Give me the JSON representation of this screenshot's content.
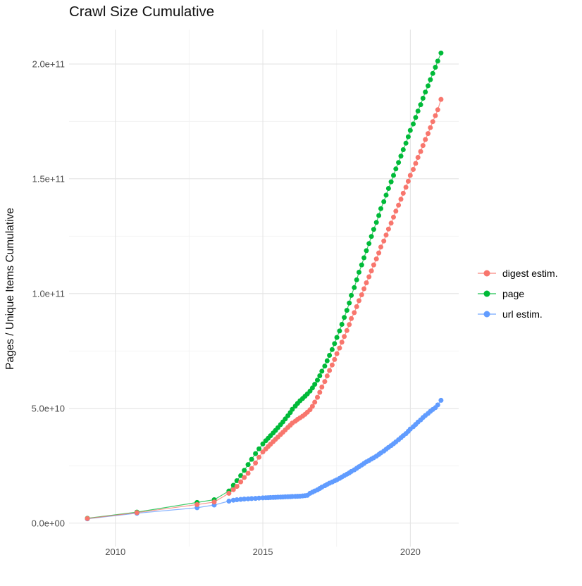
{
  "title": "Crawl Size Cumulative",
  "y_axis_title": "Pages / Unique Items Cumulative",
  "legend": {
    "items": [
      {
        "label": "digest estim.",
        "color": "#F8766D"
      },
      {
        "label": "page",
        "color": "#00BA38"
      },
      {
        "label": "url estim.",
        "color": "#619CFF"
      }
    ]
  },
  "colors": {
    "background": "#ffffff",
    "grid_major": "#e4e4e4",
    "grid_minor": "#f2f2f2",
    "axis_text": "#4d4d4d",
    "title_text": "#111111"
  },
  "chart_data": {
    "type": "scatter",
    "title": "Crawl Size Cumulative",
    "xlabel": "",
    "ylabel": "Pages / Unique Items Cumulative",
    "legend_position": "right",
    "grid": true,
    "xlim": [
      2008.43,
      2021.64
    ],
    "ylim_e9": [
      -10.2,
      215
    ],
    "y_unit_note": "values stored in billions (1e9)",
    "x_ticks": [
      {
        "value": 2010,
        "label": "2010"
      },
      {
        "value": 2015,
        "label": "2015"
      },
      {
        "value": 2020,
        "label": "2020"
      }
    ],
    "x_minor_ticks": [
      2012.5,
      2017.5
    ],
    "y_ticks": [
      {
        "value_e9": 0,
        "label": "0.0e+00"
      },
      {
        "value_e9": 50,
        "label": "5.0e+10"
      },
      {
        "value_e9": 100,
        "label": "1.0e+11"
      },
      {
        "value_e9": 150,
        "label": "1.5e+11"
      },
      {
        "value_e9": 200,
        "label": "2.0e+11"
      }
    ],
    "y_minor_ticks": [
      25,
      75,
      125,
      175
    ],
    "x": [
      2009.05,
      2010.73,
      2012.77,
      2013.35,
      2013.85,
      2014.0,
      2014.12,
      2014.25,
      2014.37,
      2014.5,
      2014.62,
      2014.75,
      2014.87,
      2015.0,
      2015.1,
      2015.18,
      2015.26,
      2015.35,
      2015.43,
      2015.51,
      2015.6,
      2015.68,
      2015.76,
      2015.85,
      2015.93,
      2016.0,
      2016.1,
      2016.18,
      2016.26,
      2016.35,
      2016.43,
      2016.51,
      2016.6,
      2016.68,
      2016.76,
      2016.85,
      2016.93,
      2017.0,
      2017.1,
      2017.18,
      2017.26,
      2017.35,
      2017.43,
      2017.51,
      2017.6,
      2017.68,
      2017.76,
      2017.85,
      2017.93,
      2018.0,
      2018.1,
      2018.18,
      2018.26,
      2018.35,
      2018.43,
      2018.51,
      2018.6,
      2018.68,
      2018.76,
      2018.85,
      2018.93,
      2019.0,
      2019.1,
      2019.18,
      2019.26,
      2019.35,
      2019.43,
      2019.51,
      2019.6,
      2019.68,
      2019.76,
      2019.85,
      2019.93,
      2020.0,
      2020.1,
      2020.18,
      2020.26,
      2020.35,
      2020.43,
      2020.51,
      2020.6,
      2020.68,
      2020.76,
      2020.85,
      2020.93,
      2021.04
    ],
    "series": [
      {
        "name": "digest estim.",
        "color": "#F8766D",
        "values_e9": [
          2.0,
          4.6,
          8.1,
          9.2,
          13.0,
          14.6,
          16.0,
          18.0,
          19.9,
          21.7,
          23.8,
          26.2,
          28.7,
          31.0,
          32.3,
          33.4,
          34.4,
          35.5,
          36.5,
          37.5,
          38.6,
          39.6,
          40.6,
          41.7,
          42.7,
          43.6,
          44.4,
          45.2,
          45.9,
          46.6,
          47.4,
          48.3,
          49.4,
          50.9,
          52.7,
          54.8,
          57.0,
          59.3,
          61.7,
          64.1,
          66.5,
          68.9,
          71.3,
          73.8,
          76.3,
          78.8,
          81.3,
          83.9,
          86.5,
          89.1,
          91.7,
          94.3,
          96.9,
          99.5,
          102.1,
          104.7,
          107.3,
          109.9,
          112.5,
          115.1,
          117.7,
          120.3,
          122.9,
          125.5,
          128.1,
          130.7,
          133.3,
          135.9,
          138.5,
          141.1,
          143.7,
          146.3,
          148.9,
          151.5,
          154.1,
          156.7,
          159.3,
          161.9,
          164.5,
          167.1,
          169.7,
          172.3,
          174.9,
          177.5,
          180.1,
          184.6
        ]
      },
      {
        "name": "page",
        "color": "#00BA38",
        "values_e9": [
          2.1,
          4.8,
          9.0,
          10.2,
          14.0,
          16.5,
          18.5,
          20.7,
          23.0,
          25.5,
          27.8,
          30.3,
          32.4,
          34.5,
          35.9,
          37.0,
          38.1,
          39.3,
          40.4,
          41.6,
          42.9,
          44.1,
          45.4,
          46.8,
          48.2,
          49.6,
          51.0,
          52.2,
          53.3,
          54.3,
          55.3,
          56.3,
          57.5,
          58.9,
          60.5,
          62.3,
          64.2,
          66.2,
          68.4,
          70.7,
          73.1,
          75.6,
          78.2,
          80.9,
          83.7,
          86.6,
          89.6,
          92.7,
          95.9,
          99.2,
          102.6,
          106.0,
          109.3,
          112.5,
          115.6,
          118.7,
          121.8,
          124.9,
          128.0,
          131.0,
          134.0,
          137.0,
          140.0,
          142.9,
          145.8,
          148.7,
          151.5,
          154.3,
          157.1,
          159.9,
          162.7,
          165.5,
          168.3,
          171.1,
          173.9,
          176.7,
          179.5,
          182.3,
          185.1,
          187.8,
          190.5,
          193.2,
          195.9,
          198.6,
          201.3,
          204.8
        ]
      },
      {
        "name": "url estim.",
        "color": "#619CFF",
        "values_e9": [
          1.9,
          4.3,
          6.7,
          7.9,
          9.6,
          10.0,
          10.2,
          10.35,
          10.5,
          10.6,
          10.7,
          10.8,
          10.9,
          11.0,
          11.05,
          11.1,
          11.15,
          11.2,
          11.25,
          11.3,
          11.35,
          11.4,
          11.45,
          11.5,
          11.55,
          11.6,
          11.65,
          11.7,
          11.75,
          11.85,
          11.95,
          12.1,
          13.0,
          13.5,
          14.0,
          14.5,
          15.1,
          15.7,
          16.3,
          16.9,
          17.4,
          17.9,
          18.4,
          18.9,
          19.5,
          20.1,
          20.7,
          21.3,
          21.9,
          22.5,
          23.2,
          23.9,
          24.6,
          25.3,
          26.0,
          26.7,
          27.3,
          27.9,
          28.5,
          29.2,
          29.9,
          30.6,
          31.4,
          32.2,
          33.0,
          33.8,
          34.6,
          35.4,
          36.3,
          37.2,
          38.1,
          39.0,
          40.0,
          41.0,
          42.0,
          43.0,
          44.0,
          45.0,
          46.0,
          46.9,
          47.8,
          48.7,
          49.5,
          50.3,
          51.5,
          53.5
        ]
      }
    ]
  }
}
